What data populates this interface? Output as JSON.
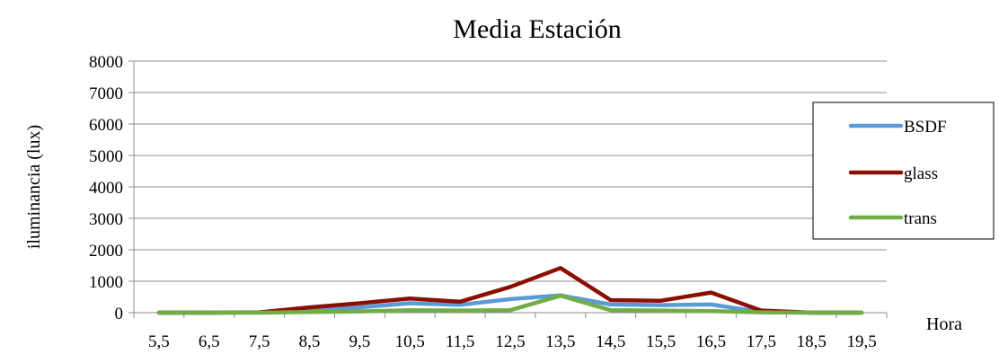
{
  "chart_data": {
    "type": "line",
    "title": "Media Estación",
    "xlabel": "Hora",
    "ylabel": "iluminancia (lux)",
    "categories": [
      "5,5",
      "6,5",
      "7,5",
      "8,5",
      "9,5",
      "10,5",
      "11,5",
      "12,5",
      "13,5",
      "14,5",
      "15,5",
      "16,5",
      "17,5",
      "18,5",
      "19,5"
    ],
    "ylim": [
      0,
      8000
    ],
    "yticks": [
      "0",
      "1000",
      "2000",
      "3000",
      "4000",
      "5000",
      "6000",
      "7000",
      "8000"
    ],
    "grid": true,
    "legend_position": "right",
    "series": [
      {
        "name": "BSDF",
        "color": "#5b9bd5",
        "values": [
          0,
          0,
          5,
          60,
          170,
          300,
          250,
          430,
          550,
          260,
          240,
          260,
          20,
          0,
          0
        ]
      },
      {
        "name": "glass",
        "color": "#8b0f00",
        "values": [
          0,
          0,
          10,
          170,
          300,
          450,
          350,
          820,
          1420,
          400,
          380,
          640,
          70,
          0,
          0
        ]
      },
      {
        "name": "trans",
        "color": "#70ad47",
        "values": [
          0,
          0,
          0,
          20,
          40,
          80,
          70,
          80,
          540,
          80,
          70,
          50,
          10,
          0,
          0
        ]
      }
    ]
  }
}
